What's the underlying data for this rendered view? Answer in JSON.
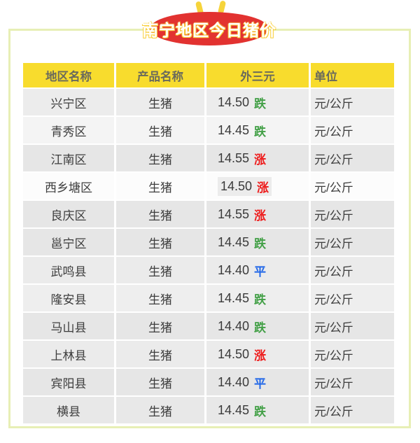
{
  "title": "南宁地区今日猪价",
  "chart_data": {
    "type": "table",
    "title": "南宁地区今日猪价",
    "columns": [
      "地区名称",
      "产品名称",
      "外三元",
      "单位"
    ],
    "rows": [
      {
        "region": "兴宁区",
        "product": "生猪",
        "price": "14.50",
        "change": "跌",
        "trend": "down",
        "unit": "元/公斤",
        "row_bg": "#ececec",
        "highlighted": false
      },
      {
        "region": "青秀区",
        "product": "生猪",
        "price": "14.45",
        "change": "跌",
        "trend": "down",
        "unit": "元/公斤",
        "row_bg": "#f4f4f4",
        "highlighted": false
      },
      {
        "region": "江南区",
        "product": "生猪",
        "price": "14.55",
        "change": "涨",
        "trend": "up",
        "unit": "元/公斤",
        "row_bg": "#e6e6e6",
        "highlighted": false
      },
      {
        "region": "西乡塘区",
        "product": "生猪",
        "price": "14.50",
        "change": "涨",
        "trend": "up",
        "unit": "元/公斤",
        "row_bg": "#fcfcfc",
        "highlighted": true
      },
      {
        "region": "良庆区",
        "product": "生猪",
        "price": "14.55",
        "change": "涨",
        "trend": "up",
        "unit": "元/公斤",
        "row_bg": "#e6e6e6",
        "highlighted": false
      },
      {
        "region": "邕宁区",
        "product": "生猪",
        "price": "14.45",
        "change": "跌",
        "trend": "down",
        "unit": "元/公斤",
        "row_bg": "#e6e6e6",
        "highlighted": false
      },
      {
        "region": "武鸣县",
        "product": "生猪",
        "price": "14.40",
        "change": "平",
        "trend": "flat",
        "unit": "元/公斤",
        "row_bg": "#ebebeb",
        "highlighted": false
      },
      {
        "region": "隆安县",
        "product": "生猪",
        "price": "14.45",
        "change": "跌",
        "trend": "down",
        "unit": "元/公斤",
        "row_bg": "#eeeeee",
        "highlighted": false
      },
      {
        "region": "马山县",
        "product": "生猪",
        "price": "14.40",
        "change": "跌",
        "trend": "down",
        "unit": "元/公斤",
        "row_bg": "#e6e6e6",
        "highlighted": false
      },
      {
        "region": "上林县",
        "product": "生猪",
        "price": "14.50",
        "change": "涨",
        "trend": "up",
        "unit": "元/公斤",
        "row_bg": "#ebebeb",
        "highlighted": false
      },
      {
        "region": "宾阳县",
        "product": "生猪",
        "price": "14.40",
        "change": "平",
        "trend": "flat",
        "unit": "元/公斤",
        "row_bg": "#e6e6e6",
        "highlighted": false
      },
      {
        "region": "横县",
        "product": "生猪",
        "price": "14.45",
        "change": "跌",
        "trend": "down",
        "unit": "元/公斤",
        "row_bg": "#e8e8e8",
        "highlighted": false
      }
    ]
  },
  "colors": {
    "trend_up": "#ee1b1b",
    "trend_down": "#43a047",
    "trend_flat": "#2368e8",
    "header_bg": "#f8dc2d",
    "title_bg": "#e23230",
    "frame_border": "#e7efb5",
    "antenna": "#f6d43b",
    "highlight_bg": "#ececec"
  }
}
